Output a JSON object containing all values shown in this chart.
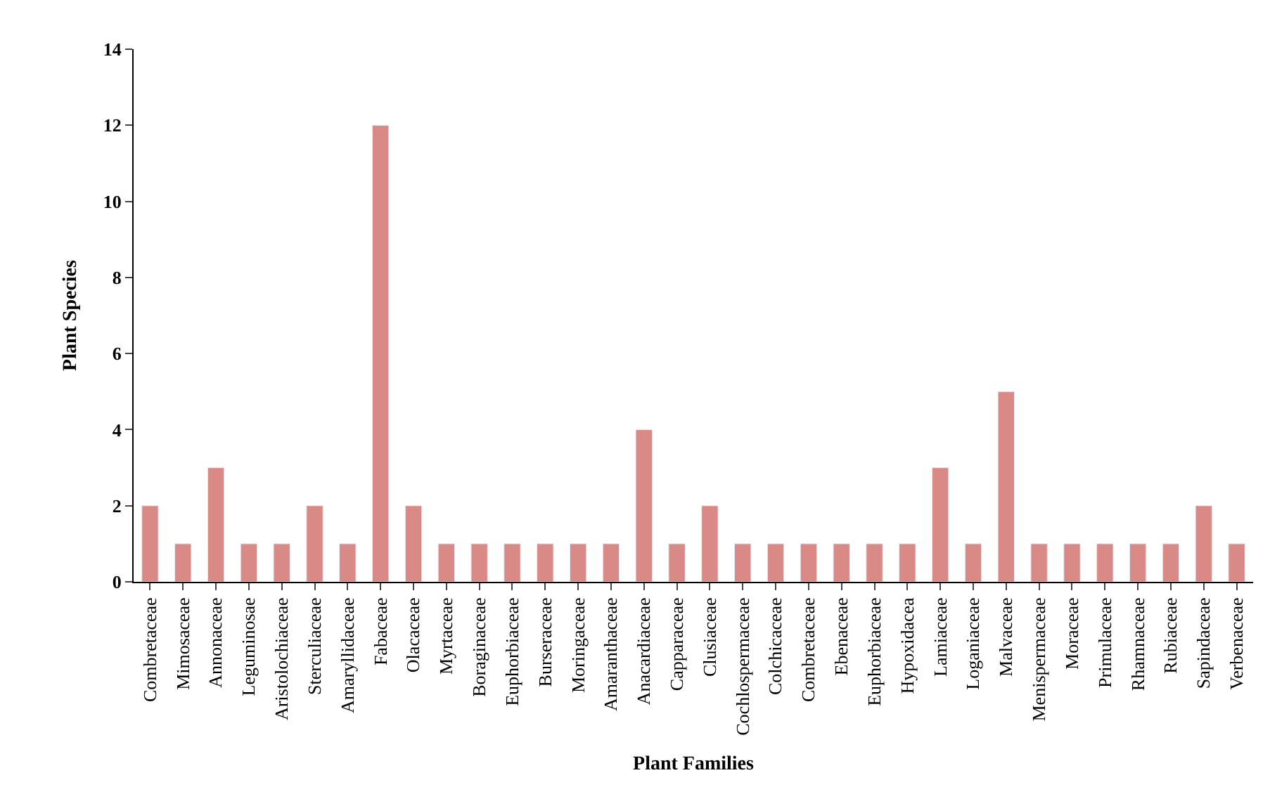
{
  "chart_data": {
    "type": "bar",
    "xlabel": "Plant Families",
    "ylabel": "Plant Species",
    "categories": [
      "Combretaceae",
      "Mimosaceae",
      "Annonaceae",
      "Leguminosae",
      "Aristolochiaceae",
      "Sterculiaceae",
      "Amaryllidaceae",
      "Fabaceae",
      "Olacaceae",
      "Myrtaceae",
      "Boraginaceae",
      "Euphorbiaceae",
      "Burseraceae",
      "Moringaceae",
      "Amaranthaceae",
      "Anacardiaceae",
      "Capparaceae",
      "Clusiaceae",
      "Cochlospermaceae",
      "Colchicaceae",
      "Combretaceae",
      "Ebenaceae",
      "Euphorbiaceae",
      "Hypoxidacea",
      "Lamiaceae",
      "Loganiaceae",
      "Malvaceae",
      "Menispermaceae",
      "Moraceae",
      "Primulaceae",
      "Rhamnaceae",
      "Rubiaceae",
      "Sapindaceae",
      "Verbenaceae"
    ],
    "values": [
      2,
      1,
      3,
      1,
      1,
      2,
      1,
      12,
      2,
      1,
      1,
      1,
      1,
      1,
      1,
      4,
      1,
      2,
      1,
      1,
      1,
      1,
      1,
      1,
      3,
      1,
      5,
      1,
      1,
      1,
      1,
      1,
      2,
      1
    ],
    "color": "#d98a86",
    "ylim": [
      0,
      14
    ],
    "yticks": [
      0,
      2,
      4,
      6,
      8,
      10,
      12,
      14
    ]
  }
}
